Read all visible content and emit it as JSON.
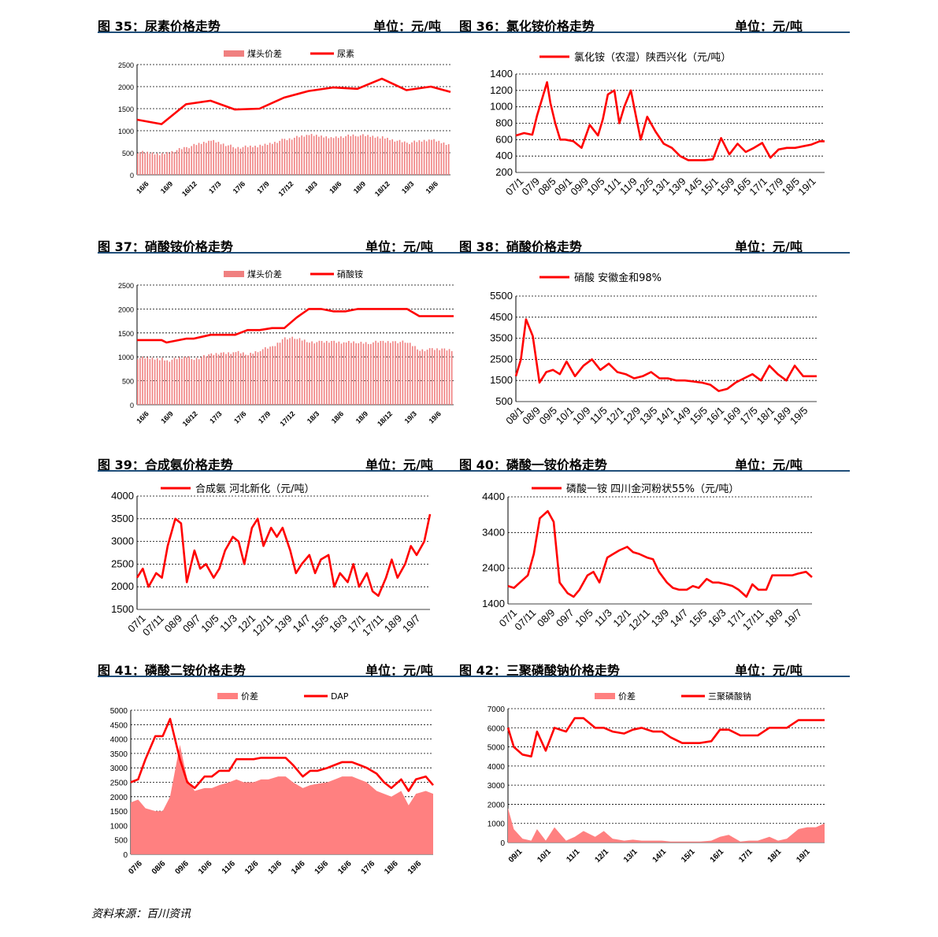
{
  "colors": {
    "line": "#ff0000",
    "bar": "#f08080",
    "area": "#ff8080",
    "rule": "#1f4e79"
  },
  "source": "资料来源：百川资讯",
  "panels": [
    {
      "id": "p35",
      "title": "图 35：尿素价格走势",
      "unit": "单位：元/吨",
      "chart_data": {
        "type": "bar",
        "legend": [
          "煤头价差",
          "尿素"
        ],
        "ylim": [
          0,
          2500
        ],
        "yticks": [
          "2500",
          "2000",
          "1500",
          "1000",
          "500",
          "0"
        ],
        "xticks": [
          "16/6",
          "16/9",
          "16/12",
          "17/3",
          "17/6",
          "17/9",
          "17/12",
          "18/3",
          "18/6",
          "18/9",
          "18/12",
          "19/3",
          "19/6"
        ],
        "x": [
          0,
          1,
          2,
          3,
          4,
          5,
          6,
          7,
          8,
          9,
          10,
          11,
          12,
          12.8
        ],
        "line": [
          1250,
          1150,
          1600,
          1680,
          1480,
          1500,
          1750,
          1900,
          1980,
          1950,
          2180,
          1920,
          2000,
          1880
        ],
        "bars": [
          520,
          470,
          620,
          780,
          620,
          650,
          800,
          900,
          850,
          900,
          850,
          720,
          800,
          680
        ]
      }
    },
    {
      "id": "p36",
      "title": "图 36：氯化铵价格走势",
      "unit": "单位：元/吨",
      "chart_data": {
        "type": "line",
        "legend": [
          "氯化铵（农湿）陕西兴化（元/吨）"
        ],
        "ylim": [
          200,
          1400
        ],
        "yticks": [
          "1400",
          "1200",
          "1000",
          "800",
          "600",
          "400",
          "200"
        ],
        "xticks": [
          "07/1",
          "07/9",
          "08/5",
          "09/1",
          "09/9",
          "10/5",
          "11/1",
          "11/9",
          "12/5",
          "13/1",
          "13/9",
          "14/5",
          "15/1",
          "15/9",
          "16/5",
          "17/1",
          "17/9",
          "18/5",
          "19/1"
        ],
        "x": [
          0,
          0.5,
          1,
          1.3,
          1.6,
          1.9,
          2.1,
          2.4,
          2.7,
          3,
          3.5,
          4,
          4.5,
          5,
          5.3,
          5.6,
          6,
          6.3,
          6.6,
          7,
          7.3,
          7.6,
          8,
          8.5,
          9,
          9.5,
          10,
          10.5,
          11,
          11.5,
          12,
          12.5,
          13,
          13.5,
          14,
          14.5,
          15,
          15.5,
          16,
          16.5,
          17,
          17.5,
          18,
          18.5,
          18.8
        ],
        "line": [
          650,
          680,
          660,
          900,
          1100,
          1300,
          1050,
          800,
          600,
          600,
          580,
          500,
          780,
          650,
          850,
          1150,
          1200,
          800,
          1000,
          1200,
          900,
          600,
          880,
          700,
          550,
          500,
          400,
          350,
          350,
          350,
          360,
          620,
          420,
          550,
          450,
          500,
          560,
          380,
          480,
          500,
          500,
          520,
          540,
          580,
          580
        ]
      }
    },
    {
      "id": "p37",
      "title": "图 37：硝酸铵价格走势",
      "unit": "单位：元/吨",
      "chart_data": {
        "type": "bar",
        "legend": [
          "煤头价差",
          "硝酸铵"
        ],
        "ylim": [
          0,
          2500
        ],
        "yticks": [
          "2500",
          "2000",
          "1500",
          "1000",
          "500",
          "0"
        ],
        "xticks": [
          "16/6",
          "16/9",
          "16/12",
          "17/3",
          "17/6",
          "17/9",
          "17/12",
          "18/3",
          "18/6",
          "18/9",
          "18/12",
          "19/3",
          "19/6"
        ],
        "x": [
          0,
          1,
          1.2,
          2,
          2.3,
          3,
          3.5,
          4,
          4.5,
          5,
          5.5,
          6,
          6.5,
          7,
          7.5,
          8,
          8.5,
          9,
          9.5,
          10,
          10.5,
          11,
          11.5,
          12,
          12.5,
          12.9
        ],
        "line": [
          1350,
          1350,
          1300,
          1380,
          1380,
          1460,
          1460,
          1460,
          1560,
          1560,
          1600,
          1600,
          1820,
          2000,
          2000,
          1950,
          1950,
          2000,
          2000,
          2000,
          2000,
          2000,
          1850,
          1850,
          1850,
          1850
        ],
        "bars": [
          980,
          960,
          920,
          1000,
          960,
          1040,
          1080,
          1100,
          1050,
          1150,
          1200,
          1400,
          1380,
          1320,
          1300,
          1320,
          1300,
          1300,
          1300,
          1310,
          1320,
          1300,
          1150,
          1150,
          1160,
          1150
        ]
      }
    },
    {
      "id": "p38",
      "title": "图 38：硝酸价格走势",
      "unit": "单位：元/吨",
      "chart_data": {
        "type": "line",
        "legend": [
          "硝酸 安徽金和98%"
        ],
        "ylim": [
          500,
          5500
        ],
        "yticks": [
          "5500",
          "4500",
          "3500",
          "2500",
          "1500",
          "500"
        ],
        "xticks": [
          "08/1",
          "08/9",
          "09/5",
          "10/1",
          "10/9",
          "11/5",
          "12/1",
          "12/9",
          "13/5",
          "14/1",
          "14/9",
          "15/5",
          "16/1",
          "16/9",
          "17/5",
          "18/1",
          "18/9",
          "19/5"
        ],
        "x": [
          0,
          0.3,
          0.6,
          1,
          1.4,
          1.8,
          2.2,
          2.6,
          3,
          3.5,
          4,
          4.5,
          5,
          5.5,
          6,
          6.5,
          7,
          7.5,
          8,
          8.5,
          9,
          9.5,
          10,
          10.5,
          11,
          11.5,
          12,
          12.5,
          13,
          13.5,
          14,
          14.5,
          15,
          15.5,
          16,
          16.5,
          17,
          17.5,
          17.8
        ],
        "line": [
          1700,
          2500,
          4400,
          3600,
          1400,
          1900,
          2000,
          1800,
          2400,
          1700,
          2200,
          2500,
          2000,
          2300,
          1900,
          1800,
          1600,
          1700,
          1900,
          1600,
          1600,
          1500,
          1500,
          1450,
          1400,
          1300,
          1000,
          1100,
          1400,
          1600,
          1800,
          1500,
          2200,
          1800,
          1500,
          2200,
          1700,
          1700,
          1700
        ]
      }
    },
    {
      "id": "p39",
      "title": "图 39：合成氨价格走势",
      "unit": "单位：元/吨",
      "chart_data": {
        "type": "line",
        "legend": [
          "合成氨 河北新化（元/吨）"
        ],
        "ylim": [
          1500,
          4000
        ],
        "yticks": [
          "4000",
          "3500",
          "3000",
          "2500",
          "2000",
          "1500"
        ],
        "xticks": [
          "07/1",
          "07/11",
          "08/9",
          "09/7",
          "10/5",
          "11/3",
          "12/1",
          "12/11",
          "13/9",
          "14/7",
          "15/5",
          "16/3",
          "17/1",
          "17/11",
          "18/9",
          "19/7"
        ],
        "x": [
          0,
          0.3,
          0.6,
          1,
          1.3,
          1.6,
          2,
          2.3,
          2.6,
          3,
          3.3,
          3.6,
          4,
          4.3,
          4.6,
          5,
          5.3,
          5.6,
          6,
          6.3,
          6.6,
          7,
          7.3,
          7.6,
          8,
          8.3,
          8.6,
          9,
          9.3,
          9.6,
          10,
          10.3,
          10.6,
          11,
          11.3,
          11.6,
          12,
          12.3,
          12.6,
          13,
          13.3,
          13.6,
          14,
          14.3,
          14.6,
          15,
          15.3
        ],
        "line": [
          2200,
          2400,
          2000,
          2300,
          2200,
          2900,
          3500,
          3400,
          2100,
          2800,
          2400,
          2500,
          2200,
          2400,
          2800,
          3100,
          3000,
          2500,
          3300,
          3500,
          2900,
          3300,
          3100,
          3300,
          2800,
          2300,
          2500,
          2700,
          2300,
          2600,
          2700,
          2000,
          2300,
          2100,
          2500,
          2000,
          2300,
          1900,
          1800,
          2200,
          2600,
          2200,
          2500,
          2900,
          2700,
          3000,
          3600
        ]
      }
    },
    {
      "id": "p40",
      "title": "图 40：磷酸一铵价格走势",
      "unit": "单位：元/吨",
      "chart_data": {
        "type": "line",
        "legend": [
          "磷酸一铵 四川金河粉状55%（元/吨）"
        ],
        "ylim": [
          1400,
          4400
        ],
        "yticks": [
          "4400",
          "3400",
          "2400",
          "1400"
        ],
        "xticks": [
          "07/1",
          "07/11",
          "08/9",
          "09/7",
          "10/5",
          "11/3",
          "12/1",
          "12/11",
          "13/9",
          "14/7",
          "15/5",
          "16/3",
          "17/1",
          "17/11",
          "18/9",
          "19/7"
        ],
        "x": [
          0,
          0.3,
          0.6,
          1,
          1.3,
          1.6,
          2,
          2.3,
          2.6,
          3,
          3.3,
          3.6,
          4,
          4.3,
          4.6,
          5,
          5.3,
          5.6,
          6,
          6.3,
          6.6,
          7,
          7.3,
          7.6,
          8,
          8.3,
          8.6,
          9,
          9.3,
          9.6,
          10,
          10.3,
          10.6,
          11,
          11.3,
          11.6,
          12,
          12.3,
          12.6,
          13,
          13.3,
          13.6,
          14,
          14.3,
          14.6,
          15,
          15.3
        ],
        "line": [
          1900,
          1850,
          2000,
          2200,
          2800,
          3800,
          4000,
          3700,
          2000,
          1700,
          1600,
          1800,
          2200,
          2300,
          2000,
          2700,
          2800,
          2900,
          3000,
          2850,
          2800,
          2700,
          2650,
          2300,
          2000,
          1850,
          1800,
          1800,
          1900,
          1850,
          2100,
          2000,
          2000,
          1950,
          1900,
          1800,
          1600,
          1950,
          1800,
          1800,
          2200,
          2200,
          2200,
          2200,
          2250,
          2300,
          2150
        ]
      }
    },
    {
      "id": "p41",
      "title": "图 41：磷酸二铵价格走势",
      "unit": "单位：元/吨",
      "chart_data": {
        "type": "area",
        "legend": [
          "价差",
          "DAP"
        ],
        "ylim": [
          0,
          5000
        ],
        "yticks": [
          "5000",
          "4500",
          "4000",
          "3500",
          "3000",
          "2500",
          "2000",
          "1500",
          "1000",
          "500",
          "0"
        ],
        "xticks": [
          "07/6",
          "08/6",
          "09/6",
          "10/6",
          "11/6",
          "12/6",
          "13/6",
          "14/6",
          "15/6",
          "16/6",
          "17/6",
          "18/6",
          "19/6"
        ],
        "x": [
          0,
          0.3,
          0.6,
          1,
          1.3,
          1.6,
          2,
          2.3,
          2.6,
          3,
          3.3,
          3.6,
          4,
          4.3,
          4.6,
          5,
          5.3,
          5.6,
          6,
          6.3,
          6.6,
          7,
          7.3,
          7.6,
          8,
          8.3,
          8.6,
          9,
          9.3,
          9.6,
          10,
          10.3,
          10.6,
          11,
          11.3,
          11.6,
          12,
          12.3
        ],
        "line": [
          2500,
          2600,
          3300,
          4100,
          4100,
          4700,
          3300,
          2500,
          2300,
          2700,
          2700,
          2900,
          2900,
          3300,
          3300,
          3300,
          3350,
          3350,
          3350,
          3350,
          3100,
          2700,
          2900,
          2900,
          3000,
          3100,
          3200,
          3200,
          3100,
          3000,
          2800,
          2500,
          2300,
          2600,
          2200,
          2600,
          2700,
          2400
        ],
        "area": [
          1800,
          1900,
          1600,
          1500,
          1500,
          2000,
          3800,
          2600,
          2200,
          2300,
          2300,
          2400,
          2500,
          2600,
          2500,
          2500,
          2600,
          2600,
          2700,
          2700,
          2500,
          2300,
          2400,
          2450,
          2500,
          2600,
          2700,
          2700,
          2600,
          2500,
          2200,
          2100,
          2000,
          2200,
          1700,
          2100,
          2200,
          2100
        ]
      }
    },
    {
      "id": "p42",
      "title": "图 42：三聚磷酸钠价格走势",
      "unit": "单位：元/吨",
      "chart_data": {
        "type": "area",
        "legend": [
          "价差",
          "三聚磷酸钠"
        ],
        "ylim": [
          0,
          7000
        ],
        "yticks": [
          "7000",
          "6000",
          "5000",
          "4000",
          "3000",
          "2000",
          "1000",
          "0"
        ],
        "xticks": [
          "09/1",
          "10/1",
          "11/1",
          "12/1",
          "13/1",
          "14/1",
          "15/1",
          "16/1",
          "17/1",
          "18/1",
          "19/1"
        ],
        "x": [
          0,
          0.2,
          0.5,
          0.8,
          1,
          1.3,
          1.6,
          2,
          2.3,
          2.6,
          3,
          3.3,
          3.6,
          4,
          4.3,
          4.6,
          5,
          5.3,
          5.6,
          6,
          6.3,
          6.6,
          7,
          7.3,
          7.6,
          8,
          8.3,
          8.6,
          9,
          9.3,
          9.6,
          10,
          10.3,
          10.6,
          10.9
        ],
        "line": [
          6000,
          5000,
          4600,
          4500,
          5800,
          4800,
          6000,
          5800,
          6500,
          6500,
          6000,
          6000,
          5800,
          5700,
          5900,
          6000,
          5800,
          5800,
          5500,
          5200,
          5200,
          5200,
          5300,
          5900,
          5900,
          5600,
          5600,
          5600,
          6000,
          6000,
          6000,
          6400,
          6400,
          6400,
          6400
        ],
        "area": [
          1800,
          700,
          200,
          100,
          700,
          100,
          800,
          100,
          300,
          600,
          300,
          600,
          200,
          100,
          150,
          100,
          100,
          100,
          50,
          50,
          50,
          50,
          100,
          300,
          400,
          50,
          100,
          100,
          300,
          100,
          200,
          700,
          800,
          800,
          1000
        ]
      }
    }
  ]
}
